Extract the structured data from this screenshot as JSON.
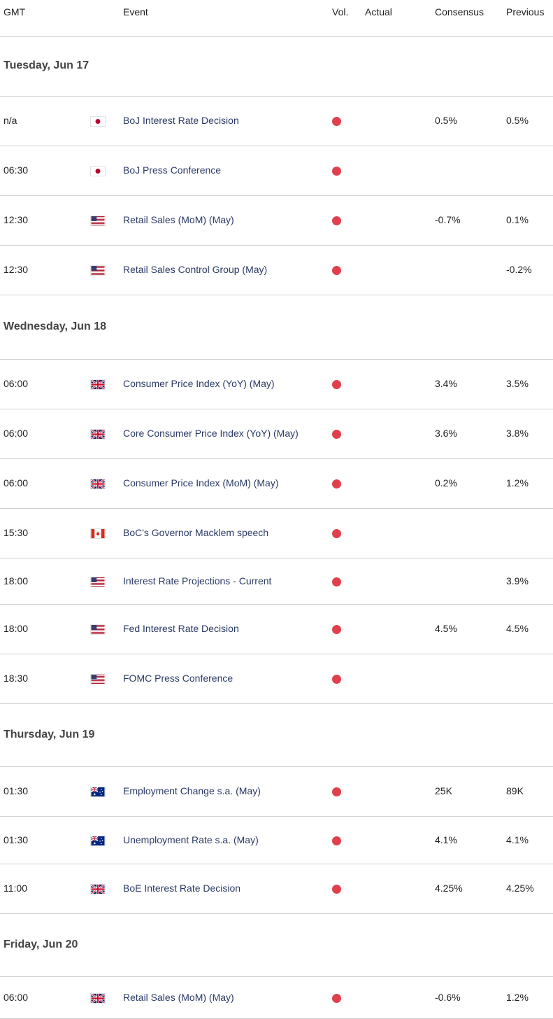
{
  "header": {
    "gmt": "GMT",
    "event": "Event",
    "vol": "Vol.",
    "actual": "Actual",
    "consensus": "Consensus",
    "previous": "Previous"
  },
  "colors": {
    "volatility_dot": "#e0404e",
    "event_text": "#2a3a66",
    "divider": "#d0d0d0"
  },
  "days": [
    {
      "label": "Tuesday, Jun 17",
      "events": [
        {
          "time": "n/a",
          "flag": "jp-flag-icon",
          "event": "BoJ Interest Rate Decision",
          "actual": "",
          "consensus": "0.5%",
          "previous": "0.5%"
        },
        {
          "time": "06:30",
          "flag": "jp-flag-icon",
          "event": "BoJ Press Conference",
          "actual": "",
          "consensus": "",
          "previous": ""
        },
        {
          "time": "12:30",
          "flag": "us-flag-icon",
          "event": "Retail Sales (MoM) (May)",
          "actual": "",
          "consensus": "-0.7%",
          "previous": "0.1%"
        },
        {
          "time": "12:30",
          "flag": "us-flag-icon",
          "event": "Retail Sales Control Group (May)",
          "actual": "",
          "consensus": "",
          "previous": "-0.2%"
        }
      ]
    },
    {
      "label": "Wednesday, Jun 18",
      "events": [
        {
          "time": "06:00",
          "flag": "uk-flag-icon",
          "event": "Consumer Price Index (YoY) (May)",
          "actual": "",
          "consensus": "3.4%",
          "previous": "3.5%"
        },
        {
          "time": "06:00",
          "flag": "uk-flag-icon",
          "event": "Core Consumer Price Index (YoY) (May)",
          "actual": "",
          "consensus": "3.6%",
          "previous": "3.8%"
        },
        {
          "time": "06:00",
          "flag": "uk-flag-icon",
          "event": "Consumer Price Index (MoM) (May)",
          "actual": "",
          "consensus": "0.2%",
          "previous": "1.2%"
        },
        {
          "time": "15:30",
          "flag": "ca-flag-icon",
          "event": "BoC's Governor Macklem speech",
          "actual": "",
          "consensus": "",
          "previous": ""
        },
        {
          "time": "18:00",
          "flag": "us-flag-icon",
          "event": "Interest Rate Projections - Current",
          "actual": "",
          "consensus": "",
          "previous": "3.9%"
        },
        {
          "time": "18:00",
          "flag": "us-flag-icon",
          "event": "Fed Interest Rate Decision",
          "actual": "",
          "consensus": "4.5%",
          "previous": "4.5%"
        },
        {
          "time": "18:30",
          "flag": "us-flag-icon",
          "event": "FOMC Press Conference",
          "actual": "",
          "consensus": "",
          "previous": ""
        }
      ]
    },
    {
      "label": "Thursday, Jun 19",
      "events": [
        {
          "time": "01:30",
          "flag": "au-flag-icon",
          "event": "Employment Change s.a. (May)",
          "actual": "",
          "consensus": "25K",
          "previous": "89K"
        },
        {
          "time": "01:30",
          "flag": "au-flag-icon",
          "event": "Unemployment Rate s.a. (May)",
          "actual": "",
          "consensus": "4.1%",
          "previous": "4.1%"
        },
        {
          "time": "11:00",
          "flag": "uk-flag-icon",
          "event": "BoE Interest Rate Decision",
          "actual": "",
          "consensus": "4.25%",
          "previous": "4.25%"
        }
      ]
    },
    {
      "label": "Friday, Jun 20",
      "events": [
        {
          "time": "06:00",
          "flag": "uk-flag-icon",
          "event": "Retail Sales (MoM) (May)",
          "actual": "",
          "consensus": "-0.6%",
          "previous": "1.2%"
        }
      ]
    }
  ]
}
